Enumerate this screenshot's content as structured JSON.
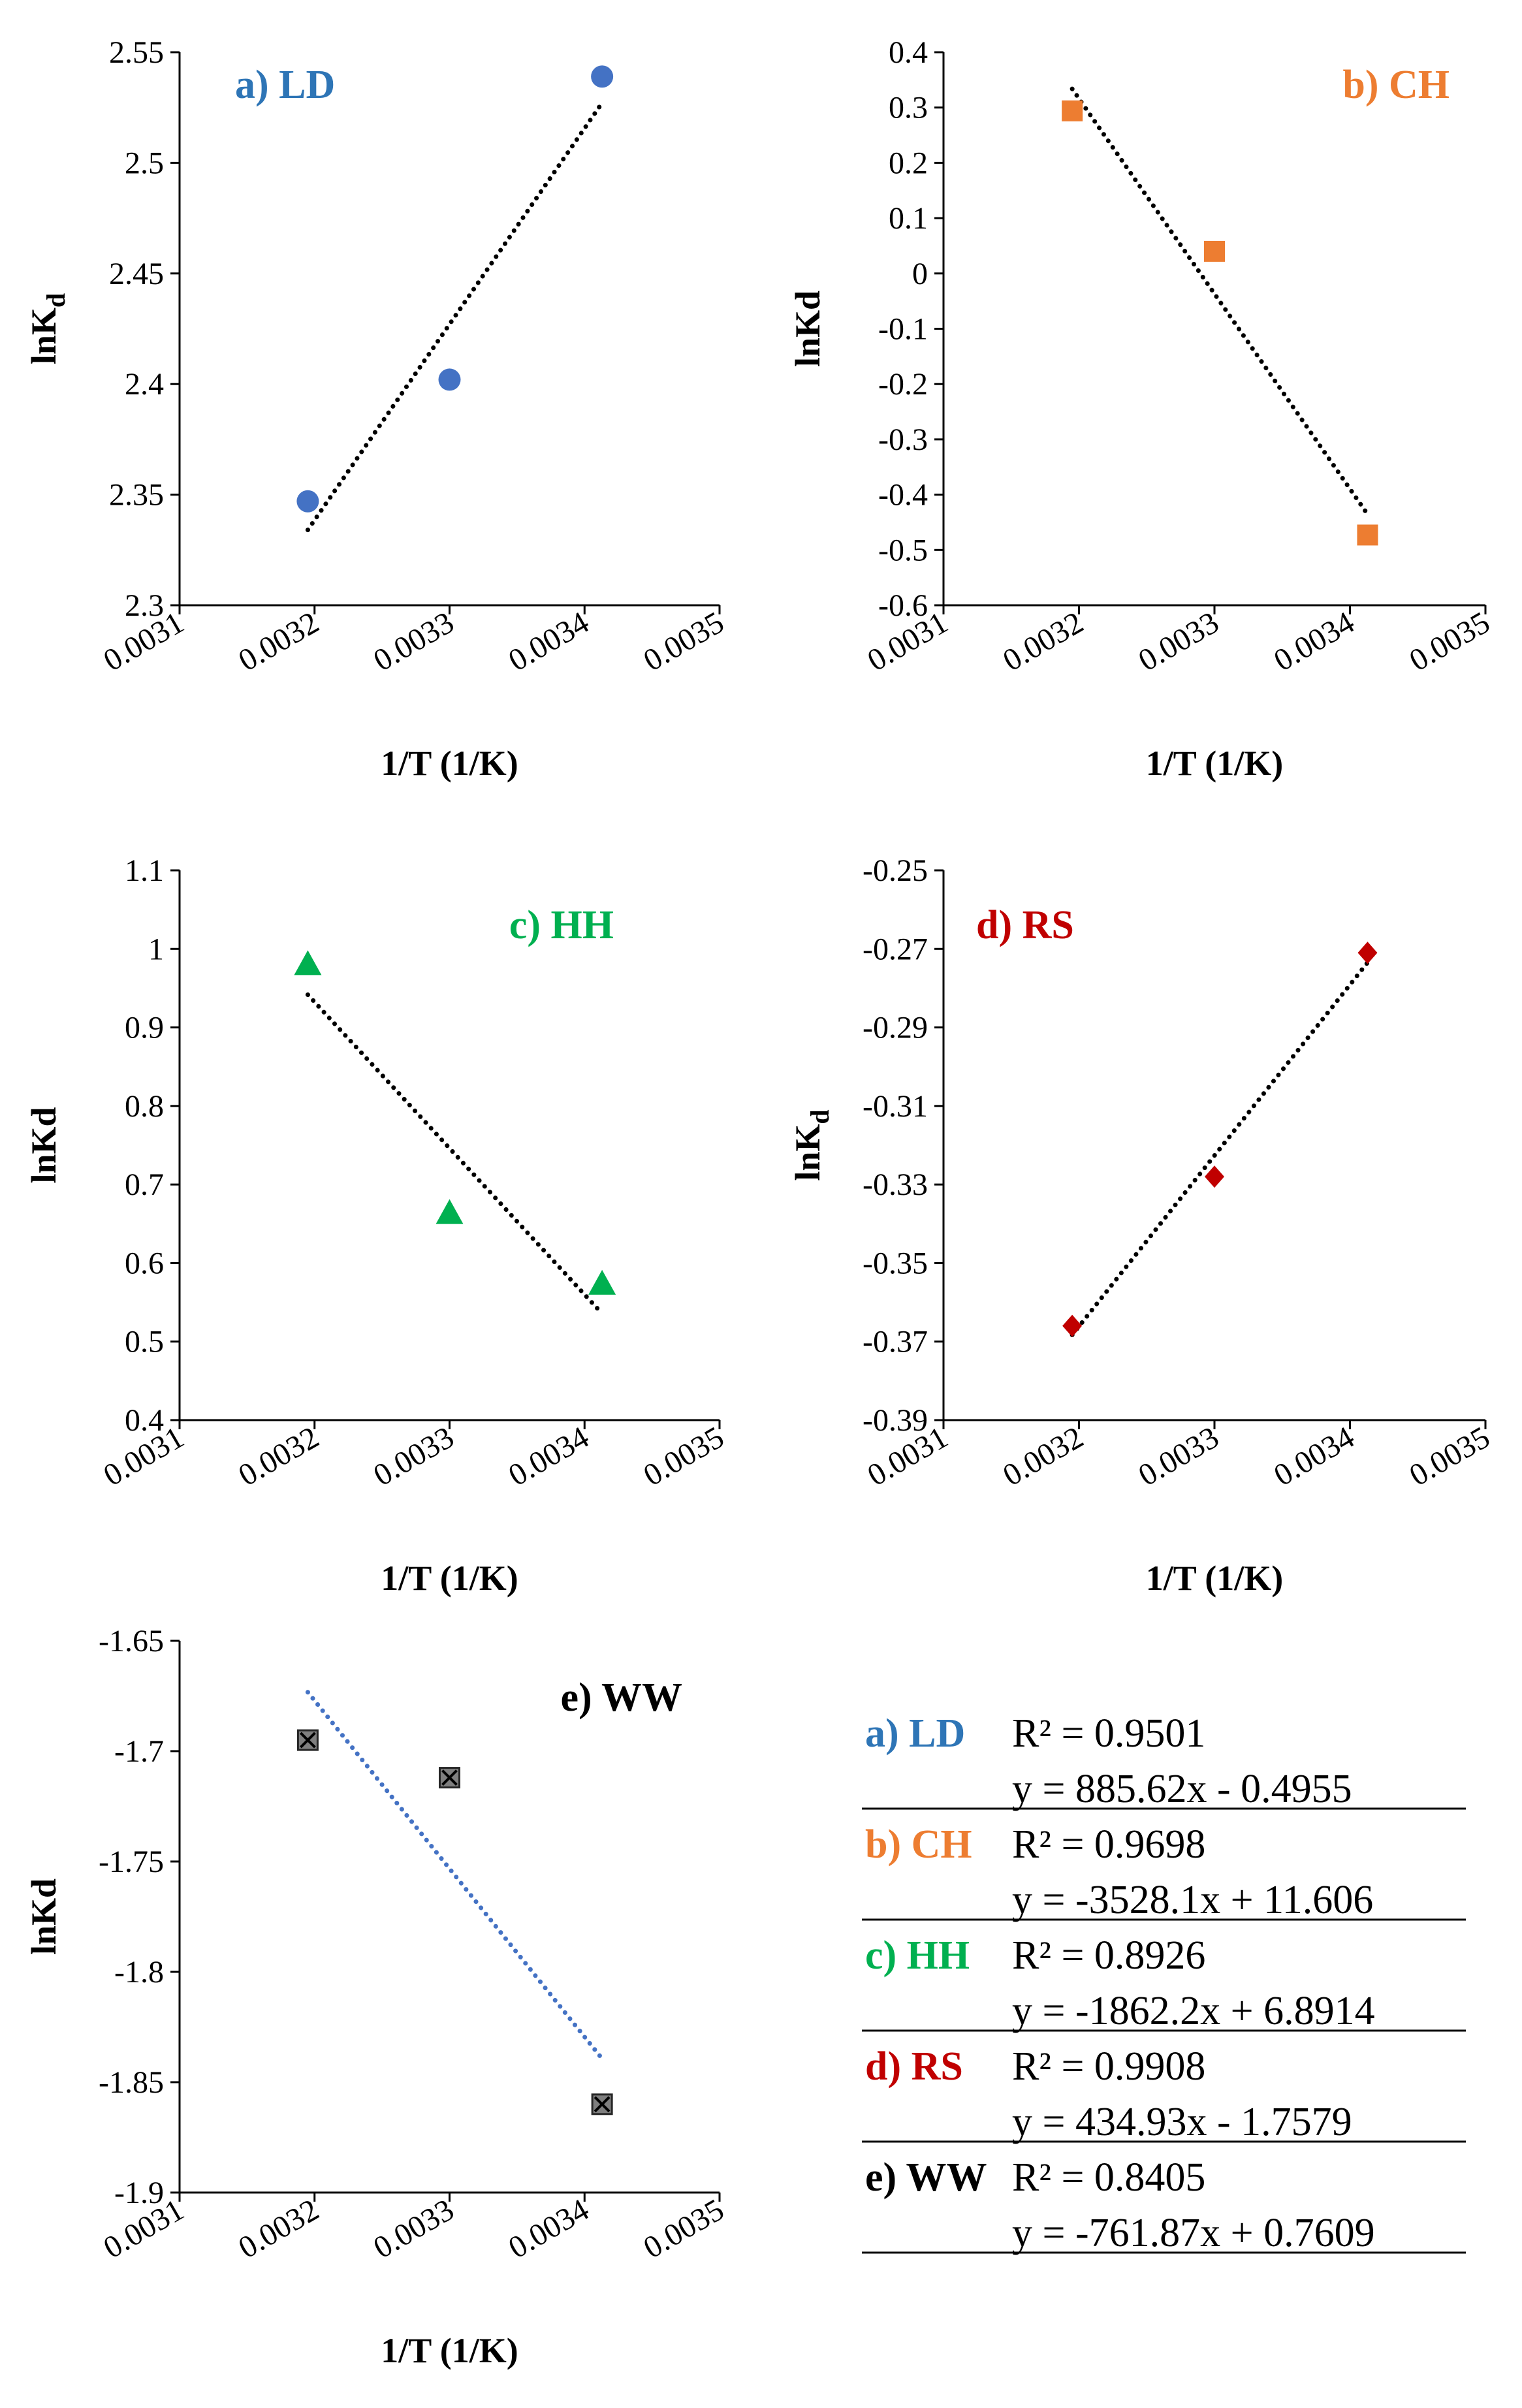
{
  "chart_data": [
    {
      "type": "scatter",
      "title": "a) LD",
      "title_color": "#2E75B6",
      "xlabel": "1/T (1/K)",
      "ylabel": "lnK",
      "ylabel_sub": "d",
      "xlim": [
        0.0031,
        0.0035
      ],
      "ylim": [
        2.3,
        2.55
      ],
      "x_ticks": [
        "0.0031",
        "0.0032",
        "0.0033",
        "0.0034",
        "0.0035"
      ],
      "y_ticks": [
        "2.3",
        "2.35",
        "2.4",
        "2.45",
        "2.5",
        "2.55"
      ],
      "marker": "circle",
      "marker_color": "#4472C4",
      "trend_color": "#000000",
      "series": [
        {
          "x": [
            0.003195,
            0.0033,
            0.003413
          ],
          "y": [
            2.347,
            2.402,
            2.539
          ]
        }
      ],
      "trendline": {
        "slope": 885.62,
        "intercept": -0.4955
      }
    },
    {
      "type": "scatter",
      "title": "b) CH",
      "title_color": "#ED7D31",
      "xlabel": "1/T (1/K)",
      "ylabel": "lnKd",
      "ylabel_sub": "",
      "xlim": [
        0.0031,
        0.0035
      ],
      "ylim": [
        -0.6,
        0.4
      ],
      "x_ticks": [
        "0.0031",
        "0.0032",
        "0.0033",
        "0.0034",
        "0.0035"
      ],
      "y_ticks": [
        "-0.6",
        "-0.5",
        "-0.4",
        "-0.3",
        "-0.2",
        "-0.1",
        "0",
        "0.1",
        "0.2",
        "0.3",
        "0.4"
      ],
      "marker": "square",
      "marker_color": "#ED7D31",
      "trend_color": "#000000",
      "series": [
        {
          "x": [
            0.003195,
            0.0033,
            0.003413
          ],
          "y": [
            0.294,
            0.04,
            -0.473
          ]
        }
      ],
      "trendline": {
        "slope": -3528.1,
        "intercept": 11.606
      }
    },
    {
      "type": "scatter",
      "title": "c) HH",
      "title_color": "#00B050",
      "xlabel": "1/T (1/K)",
      "ylabel": "lnKd",
      "ylabel_sub": "",
      "xlim": [
        0.0031,
        0.0035
      ],
      "ylim": [
        0.4,
        1.1
      ],
      "x_ticks": [
        "0.0031",
        "0.0032",
        "0.0033",
        "0.0034",
        "0.0035"
      ],
      "y_ticks": [
        "0.4",
        "0.5",
        "0.6",
        "0.7",
        "0.8",
        "0.9",
        "1",
        "1.1"
      ],
      "marker": "triangle",
      "marker_color": "#00B050",
      "trend_color": "#000000",
      "series": [
        {
          "x": [
            0.003195,
            0.0033,
            0.003413
          ],
          "y": [
            0.98,
            0.663,
            0.573
          ]
        }
      ],
      "trendline": {
        "slope": -1862.2,
        "intercept": 6.8914
      }
    },
    {
      "type": "scatter",
      "title": "d) RS",
      "title_color": "#C00000",
      "xlabel": "1/T (1/K)",
      "ylabel": "lnK",
      "ylabel_sub": "d",
      "xlim": [
        0.0031,
        0.0035
      ],
      "ylim": [
        -0.39,
        -0.25
      ],
      "x_ticks": [
        "0.0031",
        "0.0032",
        "0.0033",
        "0.0034",
        "0.0035"
      ],
      "y_ticks": [
        "-0.39",
        "-0.37",
        "-0.35",
        "-0.33",
        "-0.31",
        "-0.29",
        "-0.27",
        "-0.25"
      ],
      "marker": "diamond",
      "marker_color": "#C00000",
      "trend_color": "#000000",
      "series": [
        {
          "x": [
            0.003195,
            0.0033,
            0.003413
          ],
          "y": [
            -0.366,
            -0.328,
            -0.271
          ]
        }
      ],
      "trendline": {
        "slope": 434.93,
        "intercept": -1.7579
      }
    },
    {
      "type": "scatter",
      "title": "e) WW",
      "title_color": "#000000",
      "xlabel": "1/T (1/K)",
      "ylabel": "lnKd",
      "ylabel_sub": "",
      "xlim": [
        0.0031,
        0.0035
      ],
      "ylim": [
        -1.9,
        -1.65
      ],
      "x_ticks": [
        "0.0031",
        "0.0032",
        "0.0033",
        "0.0034",
        "0.0035"
      ],
      "y_ticks": [
        "-1.9",
        "-1.85",
        "-1.8",
        "-1.75",
        "-1.7",
        "-1.65"
      ],
      "marker": "xsquare",
      "marker_color": "#7F7F7F",
      "trend_color": "#4472C4",
      "series": [
        {
          "x": [
            0.003195,
            0.0033,
            0.003413
          ],
          "y": [
            -1.695,
            -1.712,
            -1.86
          ]
        }
      ],
      "trendline": {
        "slope": -761.87,
        "intercept": 0.7609
      }
    }
  ],
  "equations": [
    {
      "name": "a) LD",
      "color": "#2E75B6",
      "r2": "R² = 0.9501",
      "eq": "y = 885.62x - 0.4955"
    },
    {
      "name": "b) CH",
      "color": "#ED7D31",
      "r2": "R² = 0.9698",
      "eq": "y = -3528.1x + 11.606"
    },
    {
      "name": "c) HH",
      "color": "#00B050",
      "r2": "R² = 0.8926",
      "eq": "y = -1862.2x + 6.8914"
    },
    {
      "name": "d) RS",
      "color": "#C00000",
      "r2": "R² = 0.9908",
      "eq": "y = 434.93x - 1.7579"
    },
    {
      "name": "e) WW",
      "color": "#000000",
      "r2": "R² = 0.8405",
      "eq": "y = -761.87x + 0.7609"
    }
  ]
}
